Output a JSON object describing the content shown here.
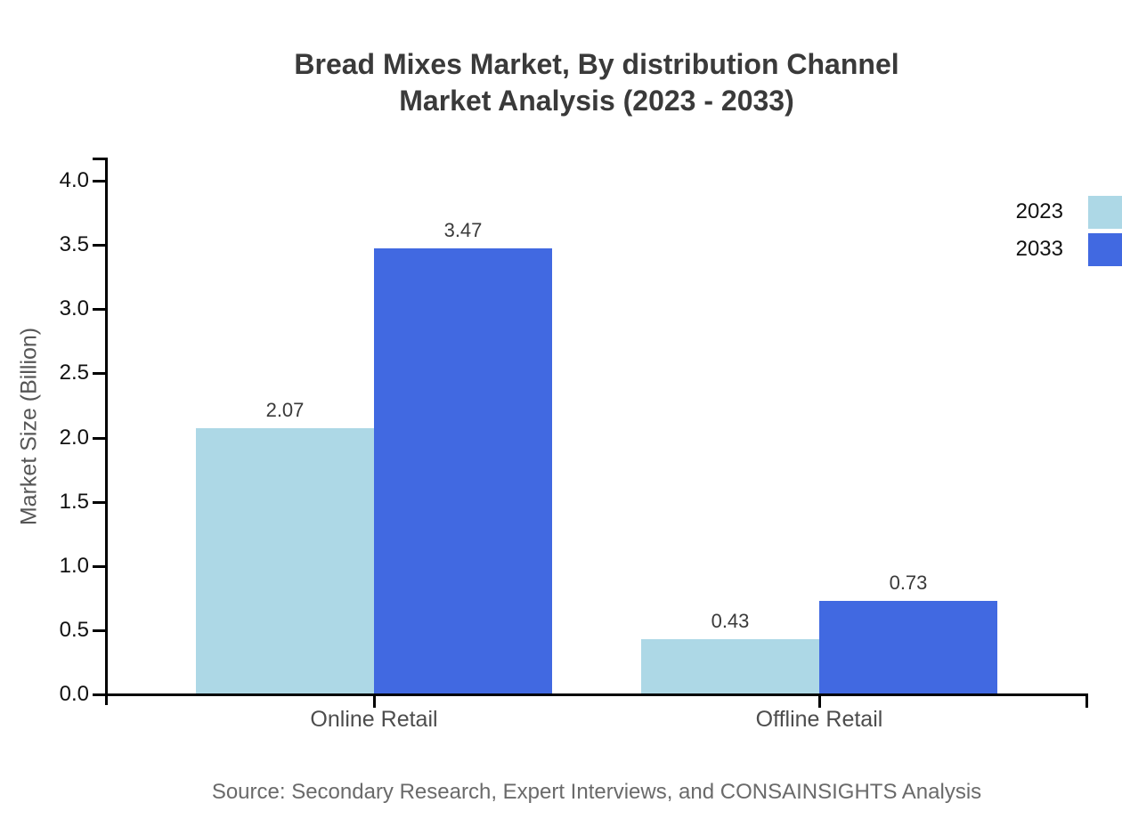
{
  "chart_data": {
    "type": "bar",
    "title": "Bread Mixes Market, By distribution Channel Market Analysis (2023 - 2033)",
    "title_line1": "Bread Mixes Market, By distribution Channel",
    "title_line2": "Market Analysis (2023 - 2033)",
    "xlabel": "",
    "ylabel": "Market Size (Billion)",
    "categories": [
      "Online Retail",
      "Offline Retail"
    ],
    "series": [
      {
        "name": "2023",
        "color": "#ADD8E6",
        "values": [
          2.07,
          0.43
        ]
      },
      {
        "name": "2033",
        "color": "#4169E1",
        "values": [
          3.47,
          0.73
        ]
      }
    ],
    "ylim": [
      0,
      4.0
    ],
    "ytick_step": 0.5,
    "ytick_labels": [
      "0.0",
      "0.5",
      "1.0",
      "1.5",
      "2.0",
      "2.5",
      "3.0",
      "3.5",
      "4.0"
    ],
    "grid": false,
    "value_labels": true,
    "legend_position": "right-outside-top"
  },
  "footer": {
    "source": "Source: Secondary Research, Expert Interviews, and CONSAINSIGHTS Analysis"
  },
  "colors": {
    "series_2023": "#ADD8E6",
    "series_2033": "#4169E1",
    "axis": "#000000",
    "title_text": "#3a3a3a",
    "category_text": "#4d4d4d",
    "source_text": "#6a6a6a",
    "background": "#ffffff"
  }
}
